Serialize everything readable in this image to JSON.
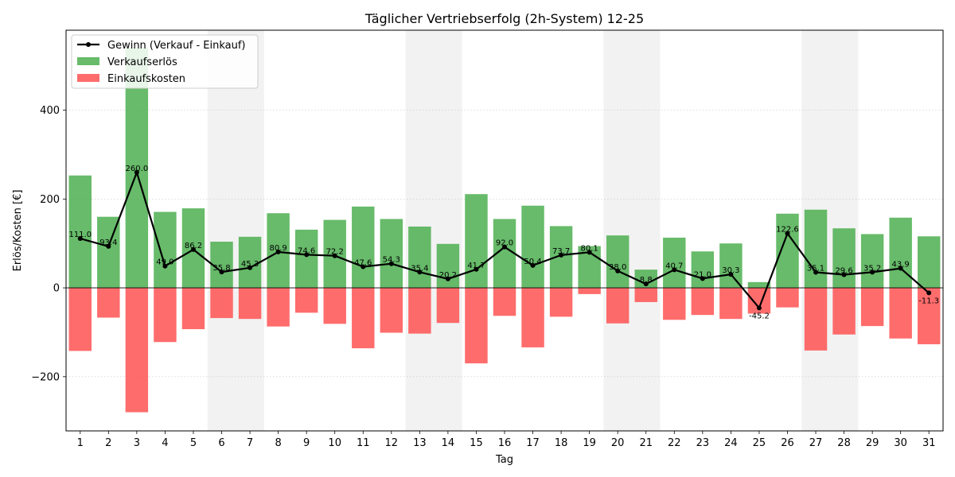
{
  "chart_data": {
    "type": "bar",
    "title": "Täglicher Vertriebserfolg (2h-System) 12-25",
    "xlabel": "Tag",
    "ylabel": "Erlös/Kosten [€]",
    "ylim": [
      -322,
      580
    ],
    "yticks": [
      -200,
      0,
      200,
      400
    ],
    "ytick_labels": [
      "−200",
      "0",
      "200",
      "400"
    ],
    "categories": [
      "1",
      "2",
      "3",
      "4",
      "5",
      "6",
      "7",
      "8",
      "9",
      "10",
      "11",
      "12",
      "13",
      "14",
      "15",
      "16",
      "17",
      "18",
      "19",
      "20",
      "21",
      "22",
      "23",
      "24",
      "25",
      "26",
      "27",
      "28",
      "29",
      "30",
      "31"
    ],
    "weekend_days": [
      6,
      7,
      13,
      14,
      20,
      21,
      27,
      28
    ],
    "grid": "horizontal dotted",
    "legend_position": "top-left",
    "series": [
      {
        "name": "Gewinn (Verkauf - Einkauf)",
        "type": "line",
        "color": "#000000",
        "values": [
          111.0,
          93.4,
          260.0,
          49.0,
          86.2,
          35.8,
          45.3,
          80.9,
          74.6,
          72.2,
          47.6,
          54.3,
          35.4,
          20.2,
          41.7,
          92.0,
          50.4,
          73.7,
          80.1,
          38.0,
          8.8,
          40.7,
          21.0,
          30.3,
          -45.2,
          122.6,
          35.1,
          29.6,
          35.2,
          43.9,
          -11.3
        ],
        "labels": [
          "111.0",
          "93.4",
          "260.0",
          "49.0",
          "86.2",
          "35.8",
          "45.3",
          "80.9",
          "74.6",
          "72.2",
          "47.6",
          "54.3",
          "35.4",
          "20.2",
          "41.7",
          "92.0",
          "50.4",
          "73.7",
          "80.1",
          "38.0",
          "8.8",
          "40.7",
          "21.0",
          "30.3",
          "-45.2",
          "122.6",
          "35.1",
          "29.6",
          "35.2",
          "43.9",
          "-11.3"
        ]
      },
      {
        "name": "Verkaufserlös",
        "type": "bar",
        "color": "#4caf50",
        "values": [
          253,
          160,
          540,
          171,
          179,
          104,
          115,
          168,
          131,
          153,
          183,
          155,
          138,
          99,
          211,
          155,
          185,
          139,
          94,
          118,
          41,
          113,
          82,
          100,
          13,
          167,
          176,
          134,
          121,
          158,
          116
        ]
      },
      {
        "name": "Einkaufskosten",
        "type": "bar",
        "color": "#ff5252",
        "values": [
          -142,
          -67,
          -280,
          -122,
          -93,
          -68,
          -70,
          -87,
          -56,
          -81,
          -136,
          -101,
          -103,
          -79,
          -170,
          -63,
          -134,
          -65,
          -14,
          -80,
          -32,
          -72,
          -61,
          -70,
          -58,
          -44,
          -141,
          -105,
          -86,
          -114,
          -127
        ]
      }
    ]
  }
}
